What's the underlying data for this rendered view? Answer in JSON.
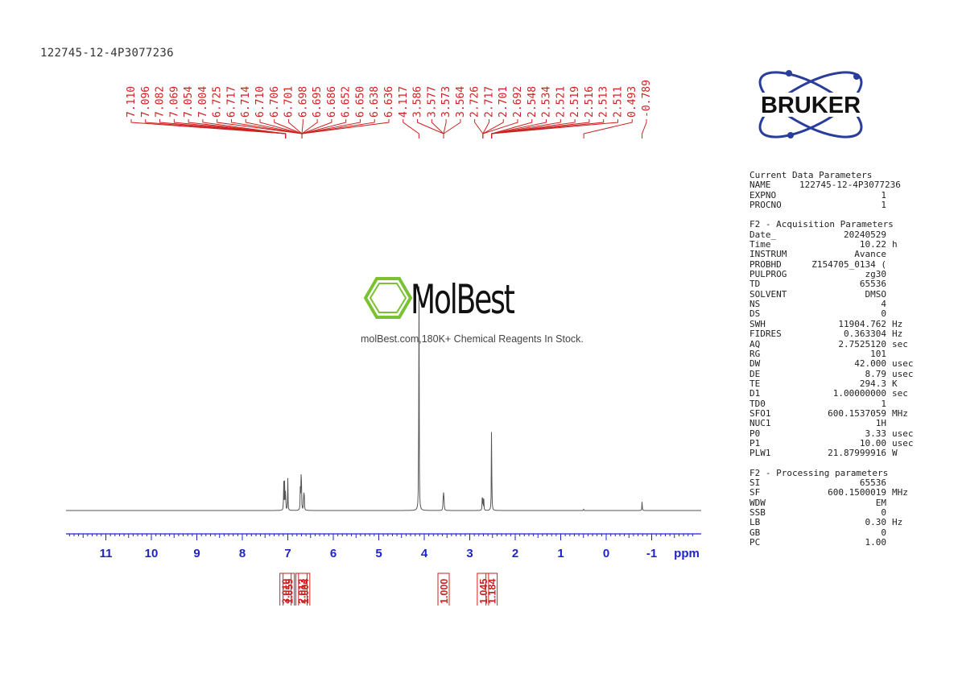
{
  "sample_name": "122745-12-4P3077236",
  "logo_text": "BRUKER",
  "watermark": {
    "brand": "MolBest",
    "tagline": "molBest.com,180K+ Chemical Reagents In Stock."
  },
  "parameters": [
    {
      "header": "Current Data Parameters",
      "rows": [
        {
          "key": "NAME",
          "value": "122745-12-4P3077236",
          "unit": ""
        },
        {
          "key": "EXPNO",
          "value": "1",
          "unit": ""
        },
        {
          "key": "PROCNO",
          "value": "1",
          "unit": ""
        }
      ]
    },
    {
      "header": "F2 - Acquisition Parameters",
      "rows": [
        {
          "key": "Date_",
          "value": "20240529",
          "unit": ""
        },
        {
          "key": "Time",
          "value": "10.22",
          "unit": "h"
        },
        {
          "key": "INSTRUM",
          "value": "Avance",
          "unit": ""
        },
        {
          "key": "PROBHD",
          "value": "Z154705_0134 (",
          "unit": ""
        },
        {
          "key": "PULPROG",
          "value": "zg30",
          "unit": ""
        },
        {
          "key": "TD",
          "value": "65536",
          "unit": ""
        },
        {
          "key": "SOLVENT",
          "value": "DMSO",
          "unit": ""
        },
        {
          "key": "NS",
          "value": "4",
          "unit": ""
        },
        {
          "key": "DS",
          "value": "0",
          "unit": ""
        },
        {
          "key": "SWH",
          "value": "11904.762",
          "unit": "Hz"
        },
        {
          "key": "FIDRES",
          "value": "0.363304",
          "unit": "Hz"
        },
        {
          "key": "AQ",
          "value": "2.7525120",
          "unit": "sec"
        },
        {
          "key": "RG",
          "value": "101",
          "unit": ""
        },
        {
          "key": "DW",
          "value": "42.000",
          "unit": "usec"
        },
        {
          "key": "DE",
          "value": "8.79",
          "unit": "usec"
        },
        {
          "key": "TE",
          "value": "294.3",
          "unit": "K"
        },
        {
          "key": "D1",
          "value": "1.00000000",
          "unit": "sec"
        },
        {
          "key": "TD0",
          "value": "1",
          "unit": ""
        },
        {
          "key": "SFO1",
          "value": "600.1537059",
          "unit": "MHz"
        },
        {
          "key": "NUC1",
          "value": "1H",
          "unit": ""
        },
        {
          "key": "P0",
          "value": "3.33",
          "unit": "usec"
        },
        {
          "key": "P1",
          "value": "10.00",
          "unit": "usec"
        },
        {
          "key": "PLW1",
          "value": "21.87999916",
          "unit": "W"
        }
      ]
    },
    {
      "header": "F2 - Processing parameters",
      "rows": [
        {
          "key": "SI",
          "value": "65536",
          "unit": ""
        },
        {
          "key": "SF",
          "value": "600.1500019",
          "unit": "MHz"
        },
        {
          "key": "WDW",
          "value": "EM",
          "unit": ""
        },
        {
          "key": "SSB",
          "value": "0",
          "unit": ""
        },
        {
          "key": "LB",
          "value": "0.30",
          "unit": "Hz"
        },
        {
          "key": "GB",
          "value": "0",
          "unit": ""
        },
        {
          "key": "PC",
          "value": "1.00",
          "unit": ""
        }
      ]
    }
  ],
  "chart_data": {
    "type": "line",
    "title": "",
    "xlabel": "ppm",
    "ylabel": "",
    "xlim": [
      12.0,
      -2.0
    ],
    "x_reversed": true,
    "x_ticks": [
      11,
      10,
      9,
      8,
      7,
      6,
      5,
      4,
      3,
      2,
      1,
      0,
      -1
    ],
    "colors": {
      "spectrum": "#555555",
      "peak_labels": "#cc2222",
      "integrals": "#cc2222",
      "axis": "#1f24c8"
    },
    "peaks": [
      {
        "ppm": 7.09,
        "height": 0.115
      },
      {
        "ppm": 7.07,
        "height": 0.105
      },
      {
        "ppm": 7.05,
        "height": 0.095
      },
      {
        "ppm": 7.0,
        "height": 0.12
      },
      {
        "ppm": 6.725,
        "height": 0.08
      },
      {
        "ppm": 6.71,
        "height": 0.13
      },
      {
        "ppm": 6.7,
        "height": 0.09
      },
      {
        "ppm": 6.65,
        "height": 0.075
      },
      {
        "ppm": 6.64,
        "height": 0.065
      },
      {
        "ppm": 4.117,
        "height": 1.0
      },
      {
        "ppm": 3.586,
        "height": 0.045
      },
      {
        "ppm": 3.575,
        "height": 0.055
      },
      {
        "ppm": 3.564,
        "height": 0.045
      },
      {
        "ppm": 2.726,
        "height": 0.045
      },
      {
        "ppm": 2.71,
        "height": 0.05
      },
      {
        "ppm": 2.69,
        "height": 0.04
      },
      {
        "ppm": 2.52,
        "height": 0.36
      },
      {
        "ppm": 0.493,
        "height": 0.006
      },
      {
        "ppm": -0.789,
        "height": 0.036
      }
    ],
    "peak_labels": [
      "7.110",
      "7.096",
      "7.082",
      "7.069",
      "7.054",
      "7.004",
      "6.725",
      "6.717",
      "6.714",
      "6.710",
      "6.706",
      "6.701",
      "6.698",
      "6.695",
      "6.686",
      "6.652",
      "6.650",
      "6.638",
      "6.636",
      "4.117",
      "3.586",
      "3.577",
      "3.573",
      "3.564",
      "2.726",
      "2.717",
      "2.701",
      "2.692",
      "2.548",
      "2.534",
      "2.521",
      "2.519",
      "2.516",
      "2.513",
      "2.511",
      "0.493",
      "-0.789"
    ],
    "peak_label_groups": [
      {
        "labels": [
          0,
          1,
          2,
          3,
          4,
          5
        ],
        "ppm": 7.05
      },
      {
        "labels": [
          6,
          7,
          8,
          9,
          10,
          11,
          12,
          13,
          14,
          15,
          16,
          17,
          18
        ],
        "ppm": 6.69
      },
      {
        "labels": [
          19
        ],
        "ppm": 4.117
      },
      {
        "labels": [
          20,
          21,
          22,
          23
        ],
        "ppm": 3.575
      },
      {
        "labels": [
          24,
          25,
          26,
          27
        ],
        "ppm": 2.71
      },
      {
        "labels": [
          28,
          29,
          30,
          31,
          32,
          33,
          34
        ],
        "ppm": 2.52
      },
      {
        "labels": [
          35
        ],
        "ppm": 0.493
      },
      {
        "labels": [
          36
        ],
        "ppm": -0.789
      }
    ],
    "integrals": [
      {
        "ppm": 7.05,
        "value": "3.010"
      },
      {
        "ppm": 6.98,
        "value": "1.059"
      },
      {
        "ppm": 6.7,
        "value": "2.013"
      },
      {
        "ppm": 6.64,
        "value": "1.004"
      },
      {
        "ppm": 3.575,
        "value": "1.000"
      },
      {
        "ppm": 2.71,
        "value": "1.045"
      },
      {
        "ppm": 2.52,
        "value": "1.184"
      }
    ]
  }
}
